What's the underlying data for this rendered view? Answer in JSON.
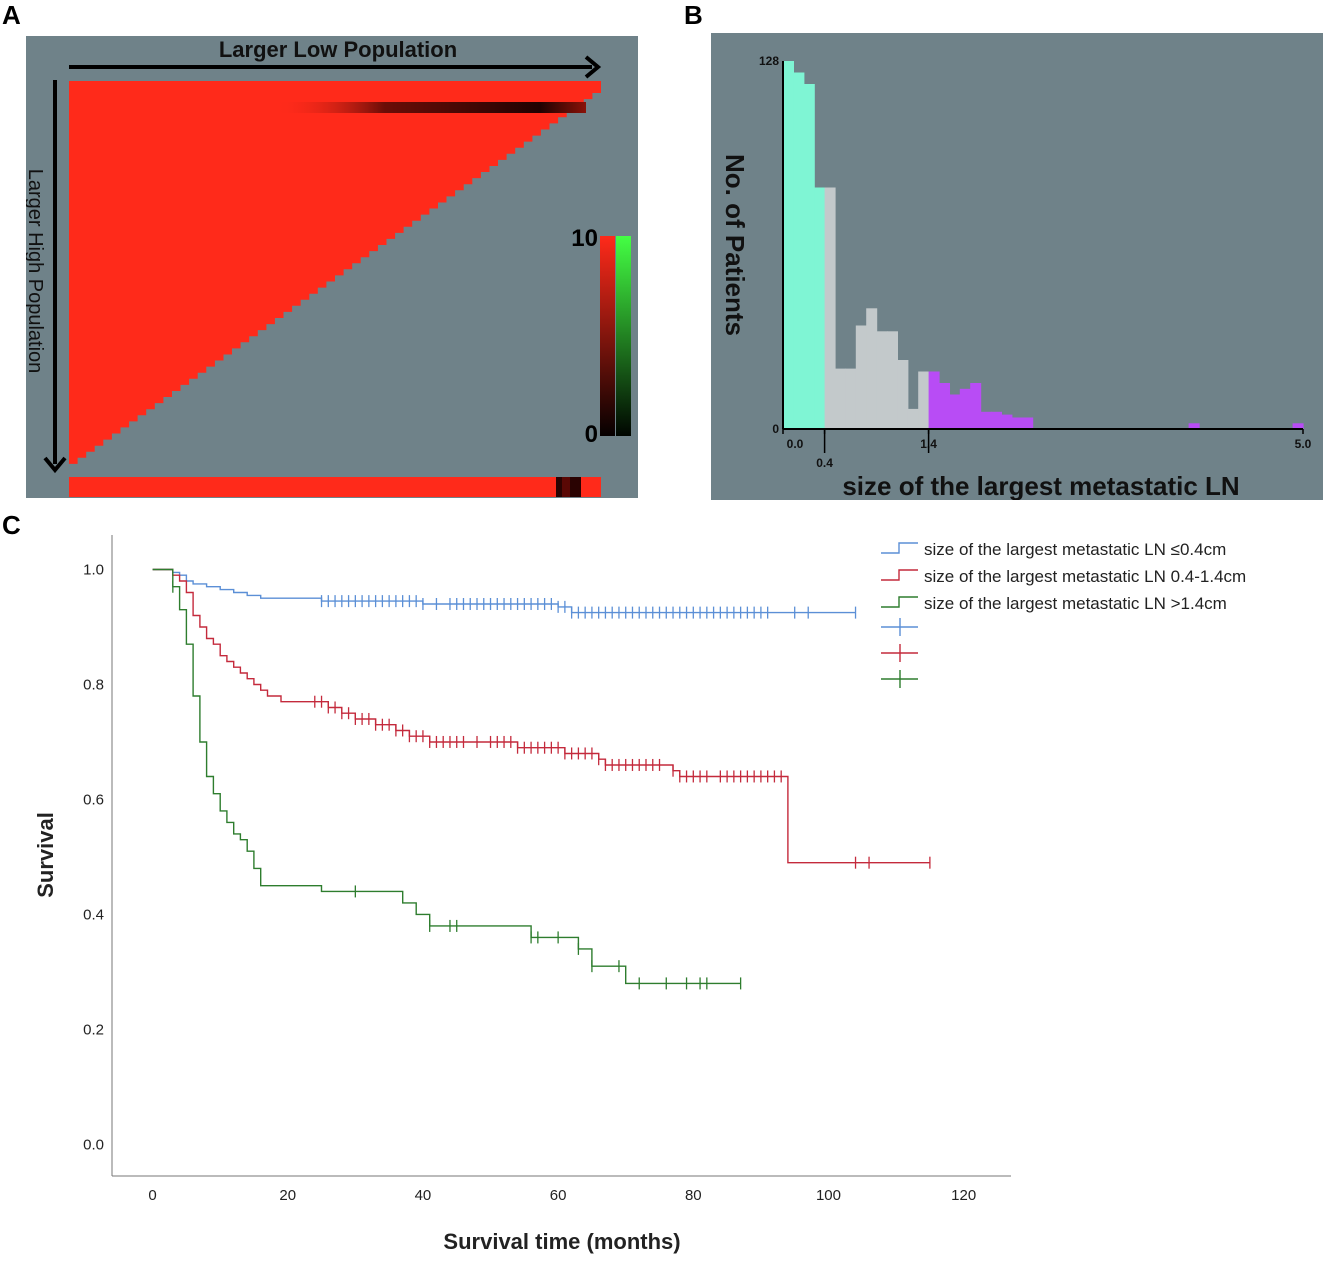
{
  "panel_labels": {
    "a": "A",
    "b": "B",
    "c": "C"
  },
  "colors": {
    "panel_bg": "#6f8289",
    "heat_red": "#ff2a1a",
    "teal": "#7ff5d4",
    "gray_bar": "#c3c9cb",
    "purple": "#b84cf5",
    "blue_line": "#5b8fd6",
    "red_line": "#c42a3c",
    "green_line": "#2e7d2e"
  },
  "panel_a": {
    "x_arrow_label": "Larger Low Population",
    "y_arrow_label": "Larger High Population",
    "colorbar_max": "10",
    "colorbar_min": "0"
  },
  "chart_data": [
    {
      "id": "B",
      "type": "bar",
      "title": "",
      "xlabel": "size of the largest metastatic LN",
      "ylabel": "No. of Patients",
      "xlim": [
        0.0,
        5.0
      ],
      "ylim": [
        0,
        128
      ],
      "x_ticks": [
        "0.0",
        "0.4",
        "1.4",
        "5.0"
      ],
      "y_ticks": [
        "0",
        "128"
      ],
      "cutpoints": [
        0.4,
        1.4
      ],
      "bin_width": 0.1,
      "bins": [
        {
          "x": 0.0,
          "value": 128,
          "group": "<=0.4"
        },
        {
          "x": 0.1,
          "value": 124,
          "group": "<=0.4"
        },
        {
          "x": 0.2,
          "value": 120,
          "group": "<=0.4"
        },
        {
          "x": 0.3,
          "value": 84,
          "group": "<=0.4"
        },
        {
          "x": 0.4,
          "value": 84,
          "group": "0.4-1.4"
        },
        {
          "x": 0.5,
          "value": 21,
          "group": "0.4-1.4"
        },
        {
          "x": 0.6,
          "value": 21,
          "group": "0.4-1.4"
        },
        {
          "x": 0.7,
          "value": 36,
          "group": "0.4-1.4"
        },
        {
          "x": 0.8,
          "value": 42,
          "group": "0.4-1.4"
        },
        {
          "x": 0.9,
          "value": 34,
          "group": "0.4-1.4"
        },
        {
          "x": 1.0,
          "value": 34,
          "group": "0.4-1.4"
        },
        {
          "x": 1.1,
          "value": 24,
          "group": "0.4-1.4"
        },
        {
          "x": 1.2,
          "value": 7,
          "group": "0.4-1.4"
        },
        {
          "x": 1.3,
          "value": 20,
          "group": "0.4-1.4"
        },
        {
          "x": 1.4,
          "value": 20,
          "group": ">1.4"
        },
        {
          "x": 1.5,
          "value": 16,
          "group": ">1.4"
        },
        {
          "x": 1.6,
          "value": 12,
          "group": ">1.4"
        },
        {
          "x": 1.7,
          "value": 14,
          "group": ">1.4"
        },
        {
          "x": 1.8,
          "value": 16,
          "group": ">1.4"
        },
        {
          "x": 1.9,
          "value": 6,
          "group": ">1.4"
        },
        {
          "x": 2.0,
          "value": 6,
          "group": ">1.4"
        },
        {
          "x": 2.1,
          "value": 5,
          "group": ">1.4"
        },
        {
          "x": 2.2,
          "value": 4,
          "group": ">1.4"
        },
        {
          "x": 2.3,
          "value": 4,
          "group": ">1.4"
        },
        {
          "x": 3.9,
          "value": 2,
          "group": ">1.4"
        },
        {
          "x": 4.9,
          "value": 2,
          "group": ">1.4"
        }
      ]
    },
    {
      "id": "C",
      "type": "line",
      "title": "",
      "xlabel": "Survival time (months)",
      "ylabel": "Survival",
      "xlim": [
        -6,
        127
      ],
      "ylim": [
        -0.055,
        1.06
      ],
      "x_ticks": [
        "0",
        "20",
        "40",
        "60",
        "80",
        "100",
        "120"
      ],
      "y_ticks": [
        "0.0",
        "0.2",
        "0.4",
        "0.6",
        "0.8",
        "1.0"
      ],
      "legend_position": "top-right",
      "series": [
        {
          "name": "size of the largest metastatic LN ≤0.4cm",
          "color": "blue",
          "steps": [
            [
              0,
              1.0
            ],
            [
              3,
              0.995
            ],
            [
              4,
              0.99
            ],
            [
              5,
              0.98
            ],
            [
              6,
              0.975
            ],
            [
              8,
              0.97
            ],
            [
              10,
              0.965
            ],
            [
              12,
              0.96
            ],
            [
              14,
              0.955
            ],
            [
              16,
              0.95
            ],
            [
              20,
              0.95
            ],
            [
              25,
              0.945
            ],
            [
              40,
              0.94
            ],
            [
              60,
              0.935
            ],
            [
              62,
              0.925
            ],
            [
              104,
              0.925
            ]
          ],
          "censored": [
            25,
            26,
            27,
            28,
            29,
            30,
            31,
            32,
            33,
            34,
            35,
            36,
            37,
            38,
            39,
            40,
            42,
            44,
            45,
            46,
            47,
            48,
            49,
            50,
            51,
            52,
            53,
            54,
            55,
            56,
            57,
            58,
            59,
            60,
            61,
            62,
            63,
            64,
            65,
            66,
            67,
            68,
            69,
            70,
            71,
            72,
            73,
            74,
            75,
            76,
            77,
            78,
            79,
            80,
            81,
            82,
            83,
            84,
            85,
            86,
            87,
            88,
            89,
            90,
            91,
            95,
            97,
            104
          ]
        },
        {
          "name": "size of the largest metastatic LN 0.4-1.4cm",
          "color": "red",
          "steps": [
            [
              0,
              1.0
            ],
            [
              3,
              0.99
            ],
            [
              4,
              0.98
            ],
            [
              5,
              0.96
            ],
            [
              6,
              0.92
            ],
            [
              7,
              0.9
            ],
            [
              8,
              0.88
            ],
            [
              9,
              0.87
            ],
            [
              10,
              0.85
            ],
            [
              11,
              0.84
            ],
            [
              12,
              0.83
            ],
            [
              13,
              0.82
            ],
            [
              14,
              0.81
            ],
            [
              15,
              0.8
            ],
            [
              16,
              0.79
            ],
            [
              17,
              0.78
            ],
            [
              19,
              0.77
            ],
            [
              25,
              0.77
            ],
            [
              26,
              0.76
            ],
            [
              28,
              0.75
            ],
            [
              30,
              0.74
            ],
            [
              33,
              0.73
            ],
            [
              36,
              0.72
            ],
            [
              38,
              0.71
            ],
            [
              41,
              0.7
            ],
            [
              54,
              0.69
            ],
            [
              61,
              0.68
            ],
            [
              66,
              0.67
            ],
            [
              67,
              0.66
            ],
            [
              77,
              0.65
            ],
            [
              78,
              0.64
            ],
            [
              94,
              0.49
            ],
            [
              115,
              0.49
            ]
          ],
          "censored": [
            24,
            25,
            26,
            27,
            28,
            29,
            30,
            31,
            32,
            33,
            34,
            35,
            36,
            37,
            38,
            39,
            40,
            41,
            42,
            43,
            44,
            45,
            46,
            48,
            50,
            51,
            52,
            53,
            54,
            55,
            56,
            57,
            58,
            59,
            60,
            61,
            62,
            63,
            64,
            65,
            66,
            67,
            68,
            69,
            70,
            71,
            72,
            73,
            74,
            75,
            77,
            78,
            79,
            80,
            81,
            82,
            84,
            85,
            86,
            87,
            88,
            89,
            90,
            91,
            92,
            93,
            104,
            106,
            115
          ]
        },
        {
          "name": "size of the largest metastatic LN >1.4cm",
          "color": "green",
          "steps": [
            [
              0,
              1.0
            ],
            [
              3,
              0.97
            ],
            [
              4,
              0.93
            ],
            [
              5,
              0.87
            ],
            [
              6,
              0.78
            ],
            [
              7,
              0.7
            ],
            [
              8,
              0.64
            ],
            [
              9,
              0.61
            ],
            [
              10,
              0.58
            ],
            [
              11,
              0.56
            ],
            [
              12,
              0.54
            ],
            [
              13,
              0.53
            ],
            [
              14,
              0.51
            ],
            [
              15,
              0.48
            ],
            [
              16,
              0.45
            ],
            [
              25,
              0.44
            ],
            [
              37,
              0.42
            ],
            [
              39,
              0.4
            ],
            [
              41,
              0.38
            ],
            [
              56,
              0.36
            ],
            [
              63,
              0.34
            ],
            [
              65,
              0.31
            ],
            [
              70,
              0.28
            ],
            [
              87,
              0.28
            ]
          ],
          "censored": [
            3,
            30,
            41,
            44,
            45,
            56,
            57,
            60,
            63,
            65,
            69,
            72,
            76,
            79,
            81,
            82,
            87
          ]
        }
      ],
      "legend_censor_items": [
        "blue",
        "red",
        "green"
      ]
    }
  ]
}
